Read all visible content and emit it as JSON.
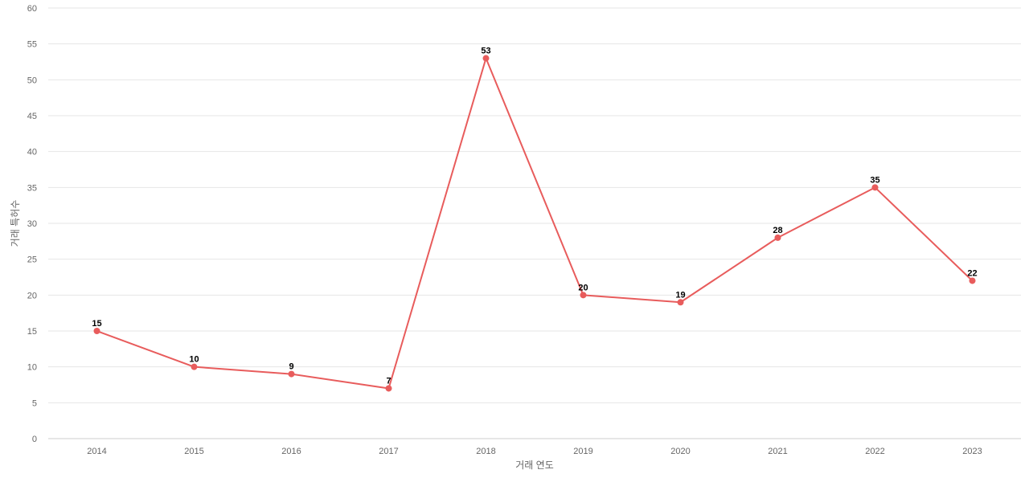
{
  "chart_data": {
    "type": "line",
    "title": "",
    "xlabel": "거래 연도",
    "ylabel": "거래 특허수",
    "categories": [
      "2014",
      "2015",
      "2016",
      "2017",
      "2018",
      "2019",
      "2020",
      "2021",
      "2022",
      "2023"
    ],
    "series": [
      {
        "values": [
          15,
          10,
          9,
          7,
          53,
          20,
          19,
          28,
          35,
          22
        ],
        "color": "#e85c5c"
      }
    ],
    "ylim": [
      0,
      60
    ],
    "yticks": [
      0,
      5,
      10,
      15,
      20,
      25,
      30,
      35,
      40,
      45,
      50,
      55,
      60
    ],
    "grid": true,
    "legend": "none",
    "data_labels": true
  }
}
